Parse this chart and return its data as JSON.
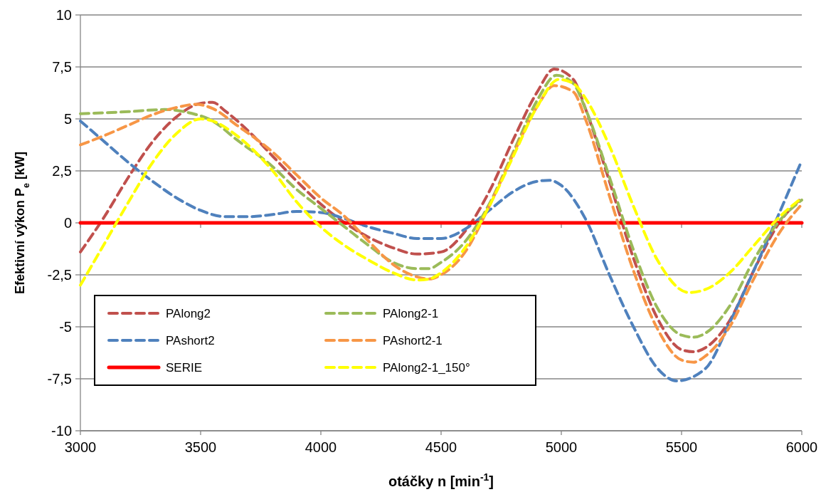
{
  "chart_data": {
    "type": "line",
    "xlabel": "otáčky n [min$^{-1}$]",
    "ylabel": "Efektivní výkon P$_{e}$ [kW]",
    "xlim": [
      3000,
      6000
    ],
    "xticks": [
      3000,
      3500,
      4000,
      4500,
      5000,
      5500,
      6000
    ],
    "ylim": [
      -10,
      10
    ],
    "yticks": [
      -10,
      {
        "value": -7.5,
        "label": "-7,5"
      },
      -5,
      {
        "value": -2.5,
        "label": "-2,5"
      },
      0,
      {
        "value": 2.5,
        "label": "2,5"
      },
      5,
      {
        "value": 7.5,
        "label": "7,5"
      },
      10
    ],
    "grid": "y",
    "legend": "bottom left",
    "marker": "none",
    "series": [
      {
        "name": "PAlong2",
        "color": "#c0504d",
        "line_style": "dashed",
        "x": [
          3000,
          3100,
          3200,
          3300,
          3400,
          3500,
          3550,
          3600,
          3700,
          3800,
          3900,
          4000,
          4100,
          4200,
          4300,
          4400,
          4500,
          4600,
          4700,
          4800,
          4900,
          4970,
          5050,
          5100,
          5200,
          5300,
          5400,
          5500,
          5550,
          5600,
          5700,
          5800,
          5900,
          6000
        ],
        "values": [
          -1.4,
          0.3,
          2.2,
          3.9,
          5.1,
          5.75,
          5.8,
          5.4,
          4.4,
          3.2,
          2.0,
          0.9,
          0.0,
          -0.7,
          -1.2,
          -1.5,
          -1.4,
          -0.4,
          1.5,
          4.0,
          6.3,
          7.4,
          6.9,
          5.5,
          2.0,
          -1.7,
          -4.6,
          -6.1,
          -6.2,
          -6.0,
          -4.7,
          -2.3,
          -0.1,
          1.2
        ]
      },
      {
        "name": "PAshort2",
        "color": "#4f81bd",
        "line_style": "dashed",
        "x": [
          3000,
          3100,
          3200,
          3300,
          3400,
          3500,
          3600,
          3700,
          3800,
          3900,
          4000,
          4100,
          4200,
          4300,
          4400,
          4500,
          4600,
          4700,
          4800,
          4900,
          4950,
          5000,
          5100,
          5200,
          5300,
          5400,
          5480,
          5600,
          5700,
          5800,
          5900,
          6000
        ],
        "values": [
          4.9,
          3.9,
          2.9,
          2.0,
          1.2,
          0.6,
          0.3,
          0.3,
          0.4,
          0.55,
          0.5,
          0.2,
          -0.2,
          -0.5,
          -0.75,
          -0.75,
          -0.3,
          0.6,
          1.5,
          2.0,
          2.05,
          1.8,
          0.2,
          -2.5,
          -5.0,
          -7.0,
          -7.6,
          -7.0,
          -4.8,
          -2.3,
          0.3,
          3.0
        ]
      },
      {
        "name": "SERIE",
        "color": "#ff0000",
        "line_style": "solid",
        "x": [
          3000,
          6000
        ],
        "values": [
          0,
          0
        ]
      },
      {
        "name": "PAlong2-1",
        "color": "#9bbb59",
        "line_style": "dashed",
        "x": [
          3000,
          3200,
          3350,
          3450,
          3550,
          3650,
          3800,
          3900,
          4000,
          4100,
          4200,
          4300,
          4400,
          4450,
          4500,
          4600,
          4700,
          4800,
          4900,
          4980,
          5050,
          5100,
          5200,
          5300,
          5400,
          5500,
          5550,
          5600,
          5700,
          5800,
          5900,
          6000
        ],
        "values": [
          5.25,
          5.35,
          5.45,
          5.3,
          4.9,
          4.0,
          2.7,
          1.6,
          0.7,
          -0.2,
          -1.1,
          -1.9,
          -2.2,
          -2.2,
          -1.9,
          -0.9,
          0.9,
          3.4,
          5.9,
          7.1,
          6.7,
          5.5,
          2.2,
          -1.3,
          -4.1,
          -5.4,
          -5.5,
          -5.3,
          -4.0,
          -1.8,
          0.0,
          1.1
        ]
      },
      {
        "name": "PAshort2-1",
        "color": "#f79646",
        "line_style": "dashed",
        "x": [
          3000,
          3100,
          3200,
          3300,
          3400,
          3480,
          3550,
          3650,
          3800,
          3900,
          4000,
          4100,
          4200,
          4300,
          4400,
          4450,
          4500,
          4600,
          4700,
          4800,
          4900,
          4970,
          5050,
          5100,
          5200,
          5300,
          5400,
          5500,
          5550,
          5600,
          5700,
          5800,
          5900,
          6000
        ],
        "values": [
          3.75,
          4.2,
          4.7,
          5.2,
          5.55,
          5.7,
          5.5,
          4.7,
          3.4,
          2.3,
          1.2,
          0.3,
          -0.9,
          -2.0,
          -2.6,
          -2.7,
          -2.5,
          -1.4,
          0.8,
          3.3,
          5.6,
          6.6,
          6.3,
          5.0,
          1.3,
          -2.3,
          -5.1,
          -6.6,
          -6.7,
          -6.4,
          -5.0,
          -2.7,
          -0.6,
          0.9
        ]
      },
      {
        "name": "PAlong2-1_150°",
        "color": "#ffff00",
        "line_style": "dashed",
        "x": [
          3000,
          3100,
          3200,
          3300,
          3400,
          3500,
          3550,
          3650,
          3800,
          3900,
          4000,
          4100,
          4200,
          4300,
          4400,
          4450,
          4500,
          4600,
          4700,
          4800,
          4900,
          4990,
          5050,
          5100,
          5200,
          5300,
          5400,
          5530,
          5600,
          5700,
          5800,
          5900,
          6000
        ],
        "values": [
          -3.0,
          -1.0,
          1.0,
          2.9,
          4.3,
          5.0,
          4.9,
          4.2,
          2.5,
          1.0,
          -0.2,
          -1.1,
          -1.8,
          -2.4,
          -2.75,
          -2.7,
          -2.4,
          -1.2,
          0.8,
          3.2,
          5.6,
          6.9,
          6.7,
          6.0,
          3.7,
          0.8,
          -1.8,
          -3.35,
          -3.2,
          -2.4,
          -1.1,
          0.2,
          1.2
        ]
      }
    ]
  }
}
